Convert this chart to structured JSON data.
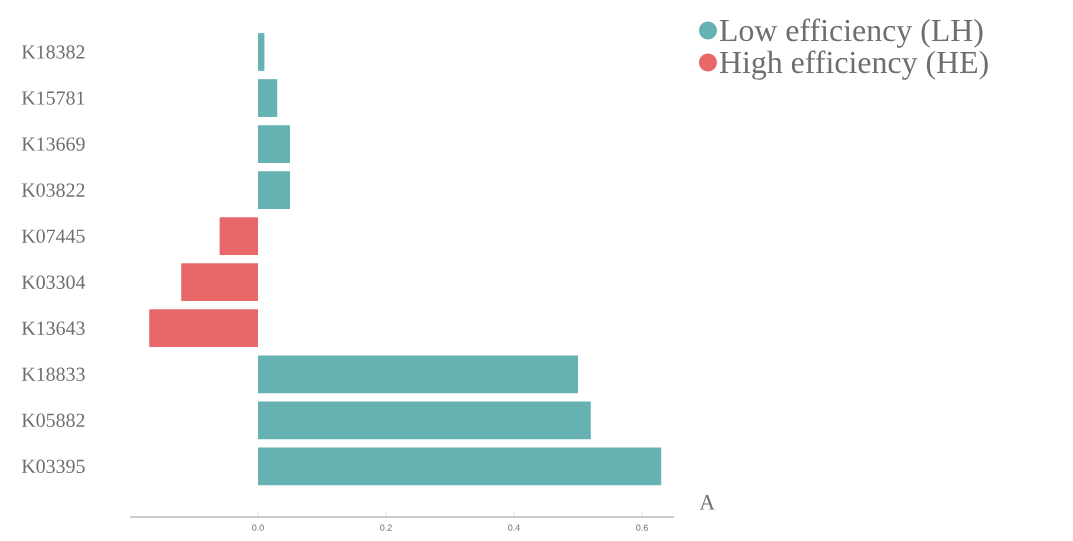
{
  "chart_data": {
    "type": "bar",
    "orientation": "horizontal",
    "categories": [
      "K18382",
      "K15781",
      "K13669",
      "K03822",
      "K07445",
      "K03304",
      "K13643",
      "K18833",
      "K05882",
      "K03395"
    ],
    "series": [
      {
        "name": "Low efficiency (LH)",
        "color": "#66b2b2",
        "values": [
          0.01,
          0.03,
          0.05,
          0.05,
          null,
          null,
          null,
          0.5,
          0.52,
          0.63
        ]
      },
      {
        "name": "High efficiency (HE)",
        "color": "#e8686a",
        "values": [
          null,
          null,
          null,
          null,
          -0.06,
          -0.12,
          -0.17,
          null,
          null,
          null
        ]
      }
    ],
    "xlim": [
      -0.2,
      0.65
    ],
    "xticks": [
      {
        "value": 0,
        "label": "0.0"
      },
      {
        "value": 0.2,
        "label": "0.2"
      },
      {
        "value": 0.4,
        "label": "0.4"
      },
      {
        "value": 0.6,
        "label": "0.6"
      }
    ],
    "legend": "top right",
    "grid": false,
    "annotations": [
      "A"
    ]
  }
}
